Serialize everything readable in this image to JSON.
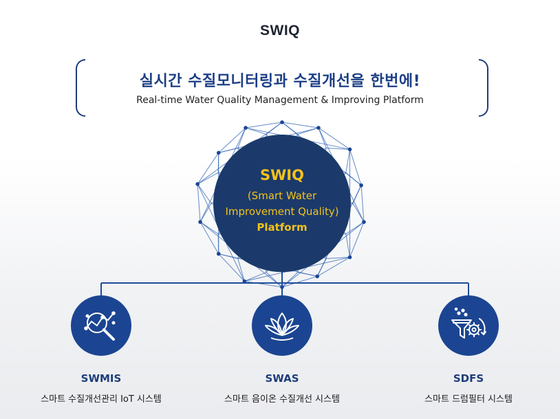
{
  "header": {
    "title": "SWIQ",
    "headline": "실시간 수질모니터링과 수질개선을 한번에!",
    "subheadline": "Real-time Water Quality Management & Improving Platform"
  },
  "hub": {
    "title": "SWIQ",
    "line1": "(Smart Water",
    "line2": "Improvement Quality)",
    "line3": "Platform"
  },
  "nodes": [
    {
      "name": "SWMIS",
      "description": "스마트 수질개선관리 IoT 시스템",
      "icon": "water-analysis-magnifier-icon"
    },
    {
      "name": "SWAS",
      "description": "스마트 음이온 수질개선 시스템",
      "icon": "lotus-icon"
    },
    {
      "name": "SDFS",
      "description": "스마트 드럼필터 시스템",
      "icon": "filter-funnel-gear-icon"
    }
  ],
  "colors": {
    "navy": "#1b3a6b",
    "icon_blue": "#1b4592",
    "accent_yellow": "#f4c21a",
    "network_blue": "#2f63b5"
  }
}
